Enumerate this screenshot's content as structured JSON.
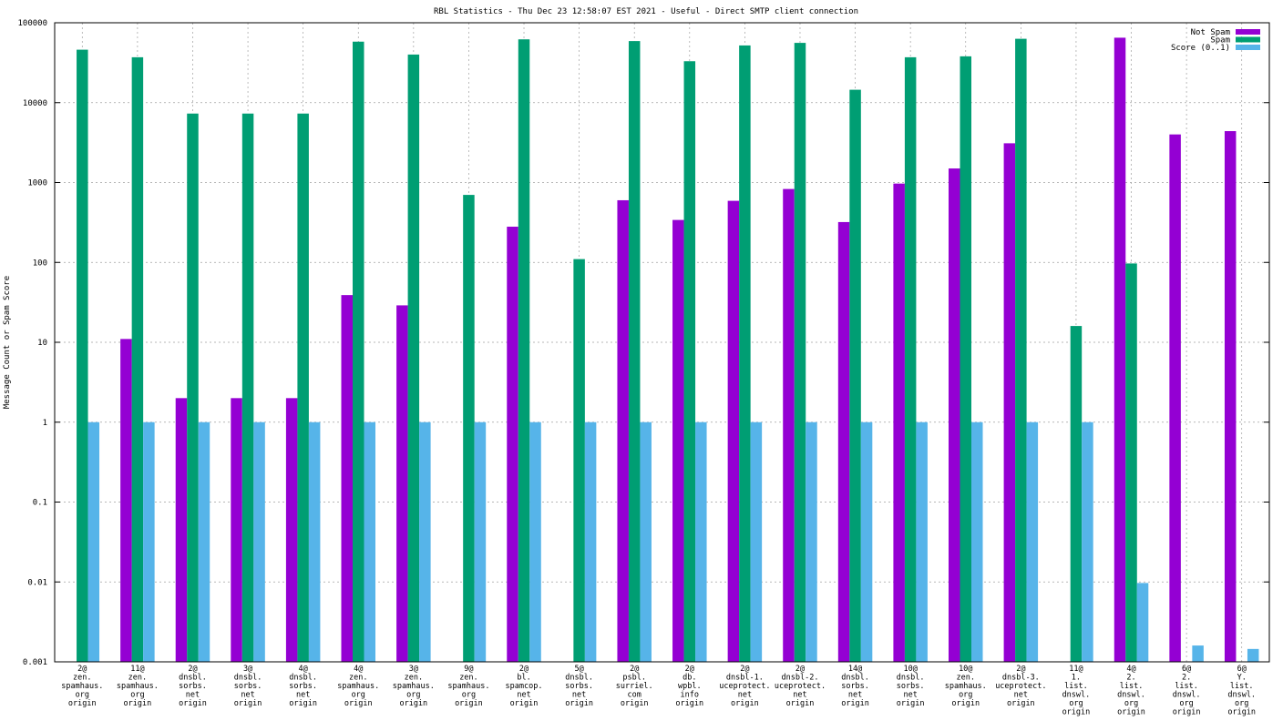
{
  "chart_data": {
    "type": "bar",
    "title": "RBL Statistics - Thu Dec 23 12:58:07 EST 2021 - Useful - Direct SMTP client connection",
    "ylabel": "Message Count or Spam Score",
    "xlabel": "",
    "yscale": "log",
    "ylim": [
      0.001,
      100000
    ],
    "yticks": [
      "0.001",
      "0.01",
      "0.1",
      "1",
      "10",
      "100",
      "1000",
      "10000",
      "100000"
    ],
    "grid": true,
    "legend_position": "top-right",
    "categories": [
      [
        "2@",
        "zen.",
        "spamhaus.",
        "org",
        "origin"
      ],
      [
        "11@",
        "zen.",
        "spamhaus.",
        "org",
        "origin"
      ],
      [
        "2@",
        "dnsbl.",
        "sorbs.",
        "net",
        "origin"
      ],
      [
        "3@",
        "dnsbl.",
        "sorbs.",
        "net",
        "origin"
      ],
      [
        "4@",
        "dnsbl.",
        "sorbs.",
        "net",
        "origin"
      ],
      [
        "4@",
        "zen.",
        "spamhaus.",
        "org",
        "origin"
      ],
      [
        "3@",
        "zen.",
        "spamhaus.",
        "org",
        "origin"
      ],
      [
        "9@",
        "zen.",
        "spamhaus.",
        "org",
        "origin"
      ],
      [
        "2@",
        "bl.",
        "spamcop.",
        "net",
        "origin"
      ],
      [
        "5@",
        "dnsbl.",
        "sorbs.",
        "net",
        "origin"
      ],
      [
        "2@",
        "psbl.",
        "surriel.",
        "com",
        "origin"
      ],
      [
        "2@",
        "db.",
        "wpbl.",
        "info",
        "origin"
      ],
      [
        "2@",
        "dnsbl-1.",
        "uceprotect.",
        "net",
        "origin"
      ],
      [
        "2@",
        "dnsbl-2.",
        "uceprotect.",
        "net",
        "origin"
      ],
      [
        "14@",
        "dnsbl.",
        "sorbs.",
        "net",
        "origin"
      ],
      [
        "10@",
        "dnsbl.",
        "sorbs.",
        "net",
        "origin"
      ],
      [
        "10@",
        "zen.",
        "spamhaus.",
        "org",
        "origin"
      ],
      [
        "2@",
        "dnsbl-3.",
        "uceprotect.",
        "net",
        "origin"
      ],
      [
        "11@",
        "1.",
        "list.",
        "dnswl.",
        "org",
        "origin"
      ],
      [
        "4@",
        "2.",
        "list.",
        "dnswl.",
        "org",
        "origin"
      ],
      [
        "6@",
        "2.",
        "list.",
        "dnswl.",
        "org",
        "origin"
      ],
      [
        "6@",
        "Y.",
        "list.",
        "dnswl.",
        "org",
        "origin"
      ]
    ],
    "series": [
      {
        "name": "Not Spam",
        "color": "#9400d3",
        "values": [
          null,
          11,
          2,
          2,
          2,
          39,
          29,
          null,
          280,
          null,
          600,
          340,
          590,
          830,
          320,
          970,
          1500,
          3100,
          null,
          65000,
          4000,
          4400
        ]
      },
      {
        "name": "Spam",
        "color": "#009e73",
        "values": [
          46000,
          37000,
          7300,
          7300,
          7300,
          58000,
          40000,
          700,
          62000,
          110,
          59000,
          33000,
          52000,
          56000,
          14500,
          37000,
          38000,
          63000,
          16,
          97,
          null,
          null
        ]
      },
      {
        "name": "Score (0..1)",
        "color": "#56b4e9",
        "values": [
          1,
          1,
          1,
          1,
          1,
          1,
          1,
          1,
          1,
          1,
          1,
          1,
          1,
          1,
          1,
          1,
          1,
          1,
          1,
          0.0097,
          0.0016,
          0.00145
        ]
      }
    ]
  }
}
